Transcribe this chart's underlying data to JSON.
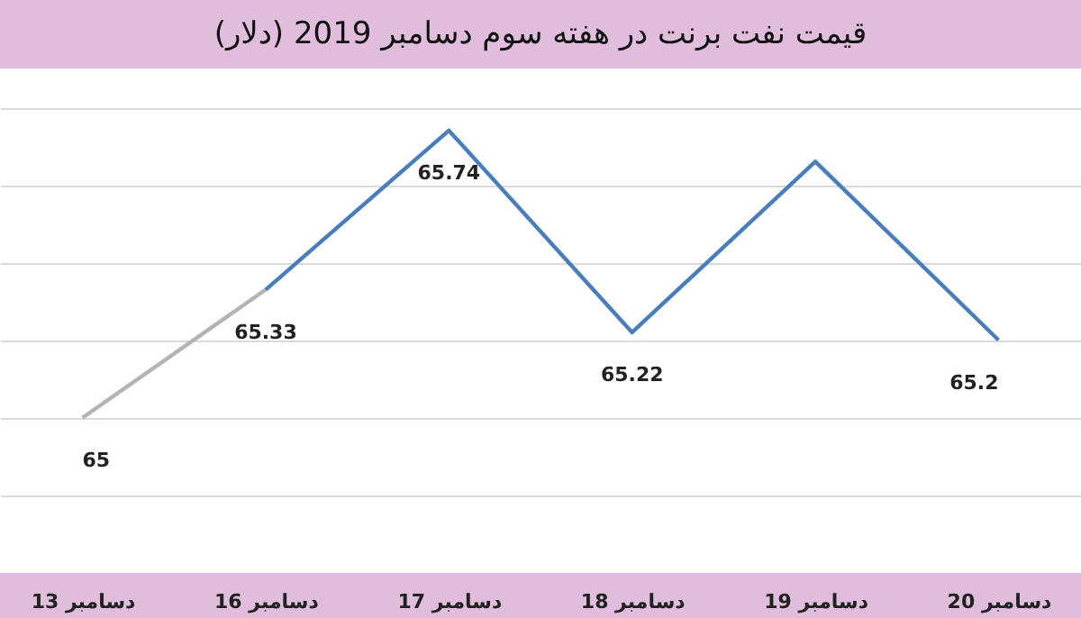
{
  "chart_data": {
    "type": "line",
    "title": "قیمت نفت برنت در هفته سوم دسامبر 2019 (دلار)",
    "categories": [
      "13 دسامبر",
      "16 دسامبر",
      "17 دسامبر",
      "18 دسامبر",
      "19 دسامبر",
      "20 دسامبر"
    ],
    "series": [
      {
        "color": "#b4b4b4",
        "values": [
          65,
          65.33,
          null,
          null,
          null,
          null
        ],
        "value_labels": [
          "65",
          "65.33",
          null,
          null,
          null,
          null
        ]
      },
      {
        "color": "#4a7ebb",
        "values": [
          null,
          65.33,
          65.74,
          65.22,
          65.66,
          65.2
        ],
        "value_labels": [
          null,
          null,
          "65.74",
          "65.22",
          null,
          "65.2"
        ]
      }
    ],
    "ylim": [
      64.6,
      65.9
    ],
    "yticks": [
      {
        "value": 64.8,
        "label": null
      },
      {
        "value": 65.0,
        "label": null
      },
      {
        "value": 65.2,
        "label": null
      },
      {
        "value": 65.4,
        "label": null
      },
      {
        "value": 65.6,
        "label": null
      },
      {
        "value": 65.8,
        "label": null
      }
    ],
    "grid": "y",
    "marker": "none",
    "line_style": "solid"
  }
}
